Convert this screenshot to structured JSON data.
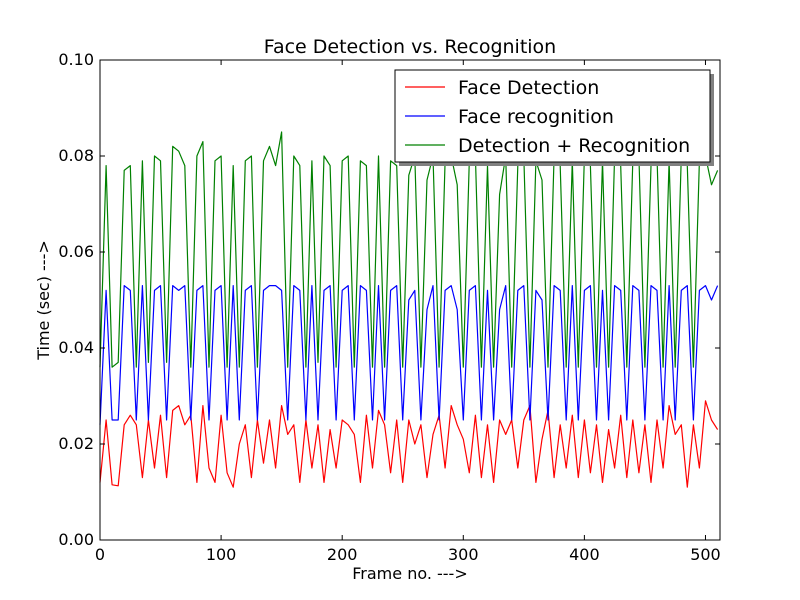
{
  "chart_data": {
    "type": "line",
    "title": "Face Detection vs. Recognition",
    "xlabel": "Frame no. --->",
    "ylabel": "Time (sec) --->",
    "xlim": [
      0,
      512
    ],
    "ylim": [
      0.0,
      0.1
    ],
    "x_ticks": [
      0,
      100,
      200,
      300,
      400,
      500
    ],
    "x_tick_labels": [
      "0",
      "100",
      "200",
      "300",
      "400",
      "500"
    ],
    "y_ticks": [
      0.0,
      0.02,
      0.04,
      0.06,
      0.08,
      0.1
    ],
    "y_tick_labels": [
      "0.00",
      "0.02",
      "0.04",
      "0.06",
      "0.08",
      "0.10"
    ],
    "grid": false,
    "legend_position": "top-right",
    "series": [
      {
        "name": "Face Detection",
        "color": "#ff0000",
        "x": [
          0,
          5,
          10,
          15,
          20,
          25,
          30,
          35,
          40,
          45,
          50,
          55,
          60,
          65,
          70,
          75,
          80,
          85,
          90,
          95,
          100,
          105,
          110,
          115,
          120,
          125,
          130,
          135,
          140,
          145,
          150,
          155,
          160,
          165,
          170,
          175,
          180,
          185,
          190,
          195,
          200,
          205,
          210,
          215,
          220,
          225,
          230,
          235,
          240,
          245,
          250,
          255,
          260,
          265,
          270,
          275,
          280,
          285,
          290,
          295,
          300,
          305,
          310,
          315,
          320,
          325,
          330,
          335,
          340,
          345,
          350,
          355,
          360,
          365,
          370,
          375,
          380,
          385,
          390,
          395,
          400,
          405,
          410,
          415,
          420,
          425,
          430,
          435,
          440,
          445,
          450,
          455,
          460,
          465,
          470,
          475,
          480,
          485,
          490,
          495,
          500,
          505,
          510
        ],
        "values": [
          0.012,
          0.025,
          0.0115,
          0.0113,
          0.024,
          0.026,
          0.024,
          0.013,
          0.025,
          0.015,
          0.026,
          0.013,
          0.027,
          0.028,
          0.024,
          0.026,
          0.012,
          0.028,
          0.015,
          0.012,
          0.026,
          0.014,
          0.011,
          0.02,
          0.024,
          0.013,
          0.025,
          0.016,
          0.025,
          0.015,
          0.028,
          0.022,
          0.024,
          0.012,
          0.025,
          0.015,
          0.024,
          0.012,
          0.023,
          0.015,
          0.025,
          0.024,
          0.022,
          0.012,
          0.026,
          0.015,
          0.027,
          0.024,
          0.014,
          0.025,
          0.012,
          0.025,
          0.02,
          0.024,
          0.013,
          0.022,
          0.026,
          0.015,
          0.028,
          0.024,
          0.021,
          0.014,
          0.026,
          0.013,
          0.024,
          0.012,
          0.025,
          0.022,
          0.025,
          0.015,
          0.025,
          0.028,
          0.012,
          0.021,
          0.027,
          0.013,
          0.024,
          0.015,
          0.026,
          0.013,
          0.025,
          0.014,
          0.024,
          0.012,
          0.023,
          0.015,
          0.026,
          0.013,
          0.025,
          0.014,
          0.024,
          0.012,
          0.025,
          0.015,
          0.028,
          0.022,
          0.024,
          0.011,
          0.024,
          0.015,
          0.029,
          0.025,
          0.023
        ]
      },
      {
        "name": "Face recognition",
        "color": "#0000ff",
        "x": [
          0,
          5,
          10,
          15,
          20,
          25,
          30,
          35,
          40,
          45,
          50,
          55,
          60,
          65,
          70,
          75,
          80,
          85,
          90,
          95,
          100,
          105,
          110,
          115,
          120,
          125,
          130,
          135,
          140,
          145,
          150,
          155,
          160,
          165,
          170,
          175,
          180,
          185,
          190,
          195,
          200,
          205,
          210,
          215,
          220,
          225,
          230,
          235,
          240,
          245,
          250,
          255,
          260,
          265,
          270,
          275,
          280,
          285,
          290,
          295,
          300,
          305,
          310,
          315,
          320,
          325,
          330,
          335,
          340,
          345,
          350,
          355,
          360,
          365,
          370,
          375,
          380,
          385,
          390,
          395,
          400,
          405,
          410,
          415,
          420,
          425,
          430,
          435,
          440,
          445,
          450,
          455,
          460,
          465,
          470,
          475,
          480,
          485,
          490,
          495,
          500,
          505,
          510
        ],
        "values": [
          0.024,
          0.052,
          0.025,
          0.025,
          0.053,
          0.052,
          0.025,
          0.053,
          0.025,
          0.052,
          0.053,
          0.025,
          0.053,
          0.052,
          0.053,
          0.025,
          0.052,
          0.053,
          0.025,
          0.052,
          0.053,
          0.025,
          0.053,
          0.025,
          0.052,
          0.053,
          0.025,
          0.052,
          0.053,
          0.053,
          0.052,
          0.025,
          0.053,
          0.052,
          0.025,
          0.053,
          0.025,
          0.052,
          0.053,
          0.025,
          0.052,
          0.053,
          0.025,
          0.053,
          0.052,
          0.025,
          0.053,
          0.025,
          0.052,
          0.053,
          0.025,
          0.05,
          0.052,
          0.025,
          0.048,
          0.053,
          0.025,
          0.052,
          0.053,
          0.048,
          0.025,
          0.052,
          0.053,
          0.025,
          0.052,
          0.025,
          0.048,
          0.053,
          0.025,
          0.052,
          0.053,
          0.025,
          0.052,
          0.05,
          0.025,
          0.053,
          0.052,
          0.025,
          0.053,
          0.025,
          0.052,
          0.053,
          0.025,
          0.052,
          0.025,
          0.053,
          0.052,
          0.025,
          0.053,
          0.052,
          0.025,
          0.053,
          0.052,
          0.025,
          0.053,
          0.025,
          0.052,
          0.053,
          0.025,
          0.052,
          0.053,
          0.05,
          0.053
        ]
      },
      {
        "name": "Detection + Recognition",
        "color": "#008000",
        "x": [
          0,
          5,
          10,
          15,
          20,
          25,
          30,
          35,
          40,
          45,
          50,
          55,
          60,
          65,
          70,
          75,
          80,
          85,
          90,
          95,
          100,
          105,
          110,
          115,
          120,
          125,
          130,
          135,
          140,
          145,
          150,
          155,
          160,
          165,
          170,
          175,
          180,
          185,
          190,
          195,
          200,
          205,
          210,
          215,
          220,
          225,
          230,
          235,
          240,
          245,
          250,
          255,
          260,
          265,
          270,
          275,
          280,
          285,
          290,
          295,
          300,
          305,
          310,
          315,
          320,
          325,
          330,
          335,
          340,
          345,
          350,
          355,
          360,
          365,
          370,
          375,
          380,
          385,
          390,
          395,
          400,
          405,
          410,
          415,
          420,
          425,
          430,
          435,
          440,
          445,
          450,
          455,
          460,
          465,
          470,
          475,
          480,
          485,
          490,
          495,
          500,
          505,
          510
        ],
        "values": [
          0.036,
          0.078,
          0.036,
          0.037,
          0.077,
          0.078,
          0.036,
          0.079,
          0.037,
          0.08,
          0.079,
          0.037,
          0.082,
          0.081,
          0.078,
          0.036,
          0.08,
          0.083,
          0.036,
          0.079,
          0.08,
          0.036,
          0.078,
          0.036,
          0.079,
          0.08,
          0.036,
          0.079,
          0.082,
          0.078,
          0.085,
          0.036,
          0.08,
          0.078,
          0.036,
          0.079,
          0.037,
          0.08,
          0.078,
          0.036,
          0.079,
          0.08,
          0.036,
          0.079,
          0.078,
          0.036,
          0.08,
          0.036,
          0.079,
          0.078,
          0.036,
          0.076,
          0.08,
          0.036,
          0.075,
          0.08,
          0.036,
          0.079,
          0.08,
          0.074,
          0.036,
          0.079,
          0.08,
          0.036,
          0.078,
          0.036,
          0.072,
          0.08,
          0.036,
          0.078,
          0.08,
          0.036,
          0.079,
          0.075,
          0.036,
          0.08,
          0.078,
          0.036,
          0.079,
          0.036,
          0.08,
          0.078,
          0.036,
          0.079,
          0.036,
          0.08,
          0.078,
          0.036,
          0.079,
          0.08,
          0.036,
          0.078,
          0.08,
          0.036,
          0.079,
          0.036,
          0.08,
          0.078,
          0.036,
          0.079,
          0.08,
          0.074,
          0.077
        ]
      }
    ]
  }
}
